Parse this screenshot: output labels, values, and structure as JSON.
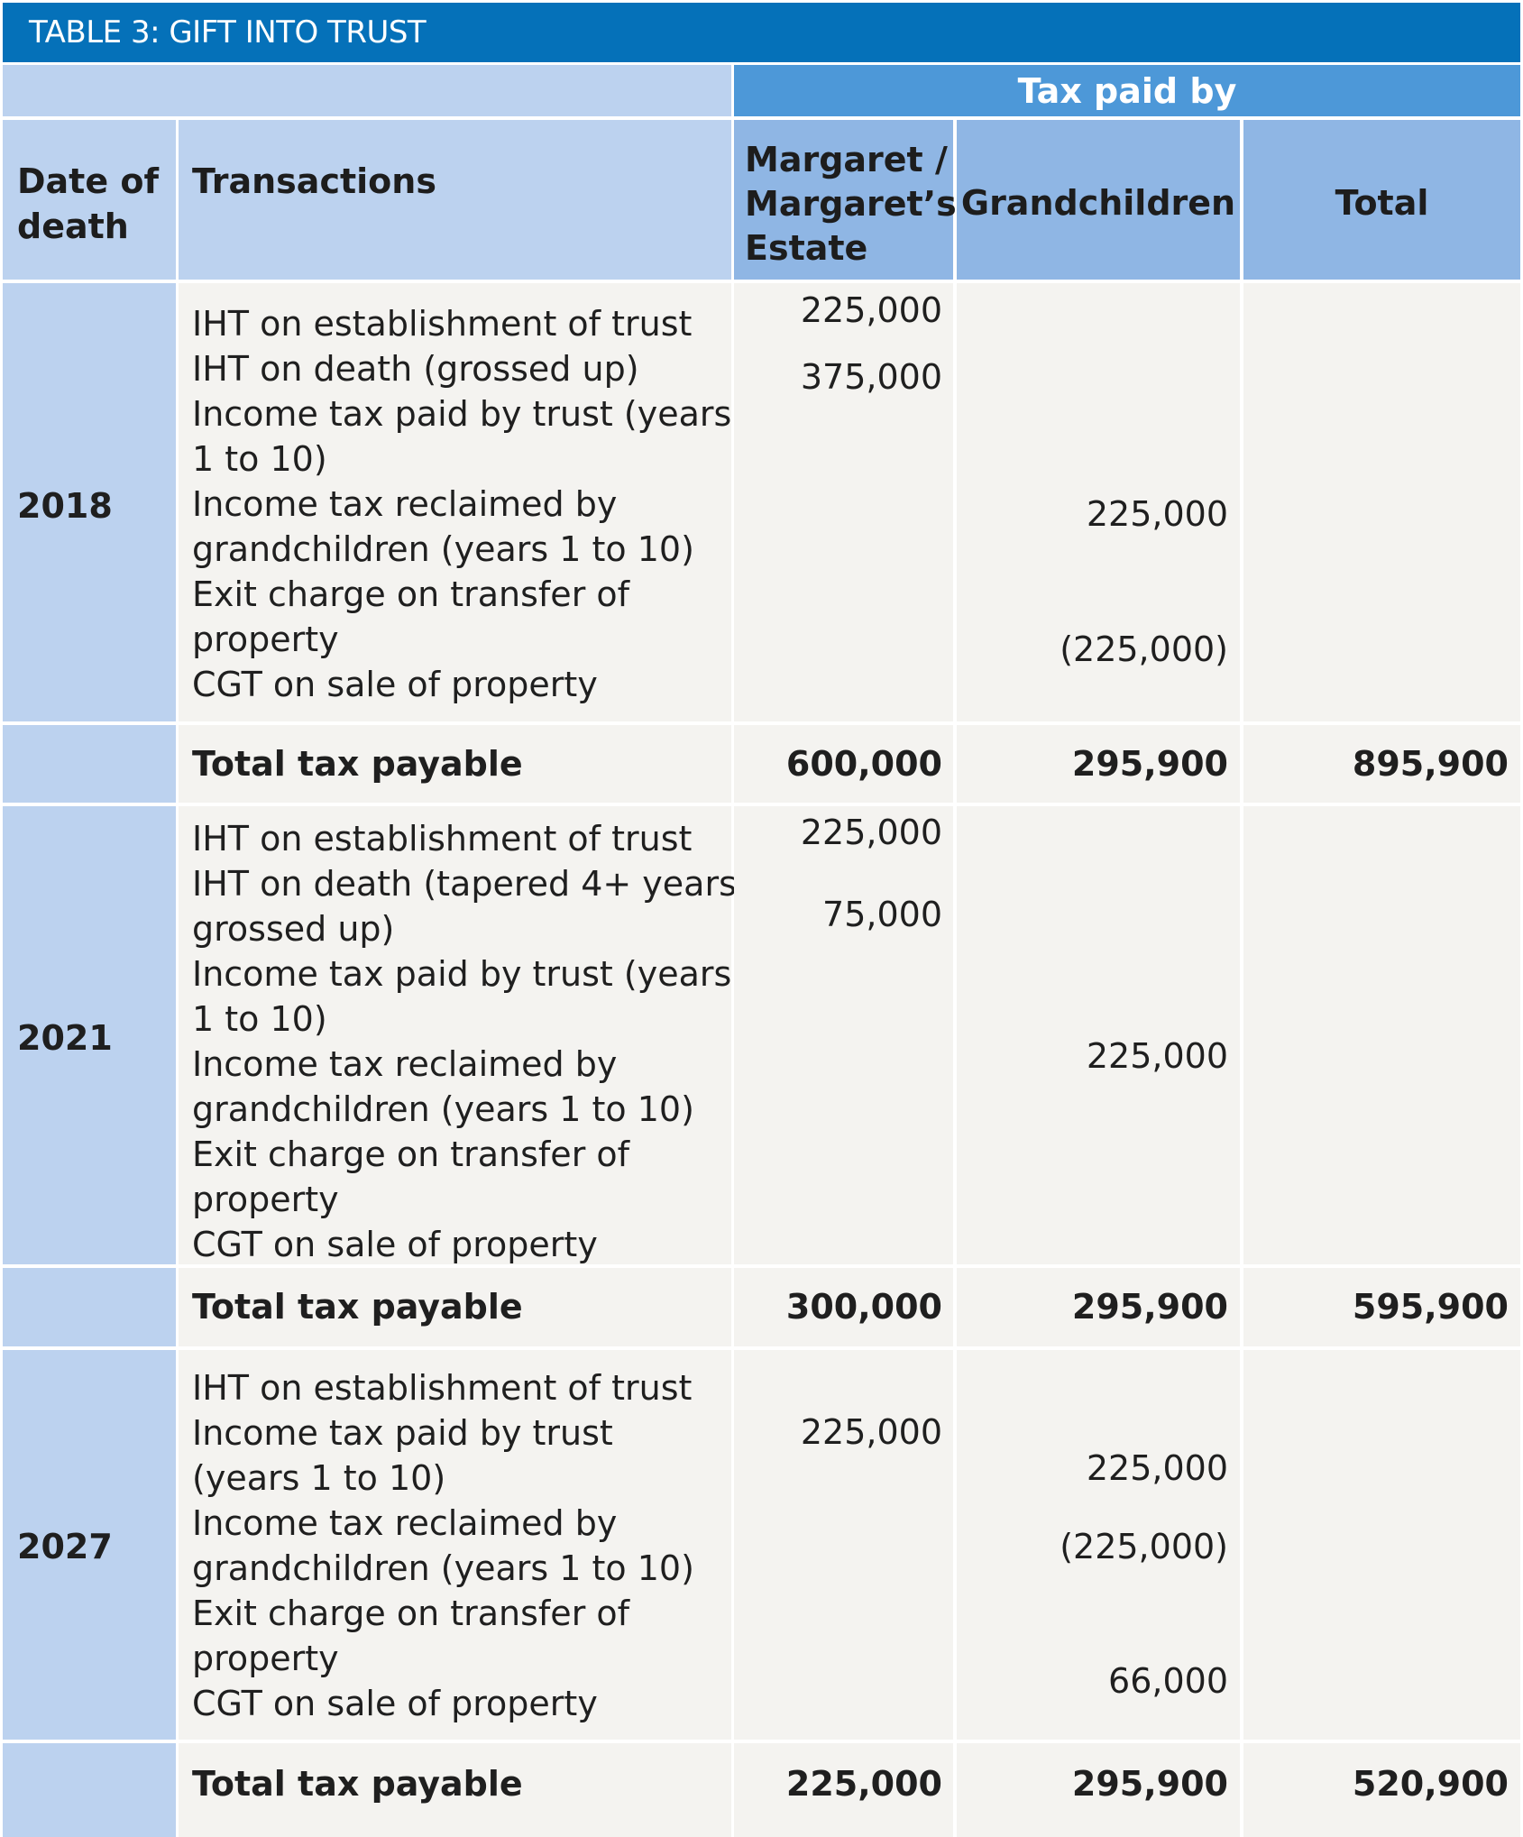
{
  "title": "TABLE 3: GIFT INTO TRUST",
  "group_header": "Tax paid by",
  "headers": {
    "date_of_death": [
      "Date of",
      "death"
    ],
    "transactions": "Transactions",
    "margaret": [
      "Margaret /",
      "Margaret’s",
      "Estate"
    ],
    "grandchildren": "Grandchildren",
    "total": "Total"
  },
  "sections": [
    {
      "year": "2018",
      "transactions": [
        "IHT on establishment of trust",
        "IHT on death (grossed up)",
        "Income tax paid by trust (years",
        "1 to 10)",
        "Income tax reclaimed by",
        "grandchildren (years 1 to 10)",
        "Exit charge on transfer of",
        "property",
        "CGT on sale of property"
      ],
      "margaret_values": [
        "225,000",
        "375,000"
      ],
      "grandchildren_values": [
        "225,000",
        "(225,000)"
      ],
      "total_row": {
        "label": "Total tax payable",
        "margaret": "600,000",
        "grandchildren": "295,900",
        "total": "895,900"
      }
    },
    {
      "year": "2021",
      "transactions": [
        "IHT on establishment of trust",
        "IHT on death (tapered 4+ years,",
        "grossed up)",
        "Income tax paid by trust (years",
        "1 to 10)",
        "Income tax reclaimed by",
        "grandchildren (years 1 to 10)",
        "Exit charge on transfer of",
        "property",
        "CGT on sale of property"
      ],
      "margaret_values": [
        "225,000",
        "75,000"
      ],
      "grandchildren_values": [
        "225,000"
      ],
      "total_row": {
        "label": "Total tax payable",
        "margaret": "300,000",
        "grandchildren": "295,900",
        "total": "595,900"
      }
    },
    {
      "year": "2027",
      "transactions": [
        "IHT on establishment of trust",
        "Income tax paid by trust",
        "(years 1 to 10)",
        "Income tax reclaimed by",
        "grandchildren (years 1 to 10)",
        "Exit charge on transfer of",
        "property",
        "CGT on sale of property"
      ],
      "margaret_values": [
        "225,000"
      ],
      "grandchildren_values": [
        "225,000",
        "(225,000)",
        "66,000"
      ],
      "total_row": {
        "label": "Total tax payable",
        "margaret": "225,000",
        "grandchildren": "295,900",
        "total": "520,900"
      }
    }
  ]
}
